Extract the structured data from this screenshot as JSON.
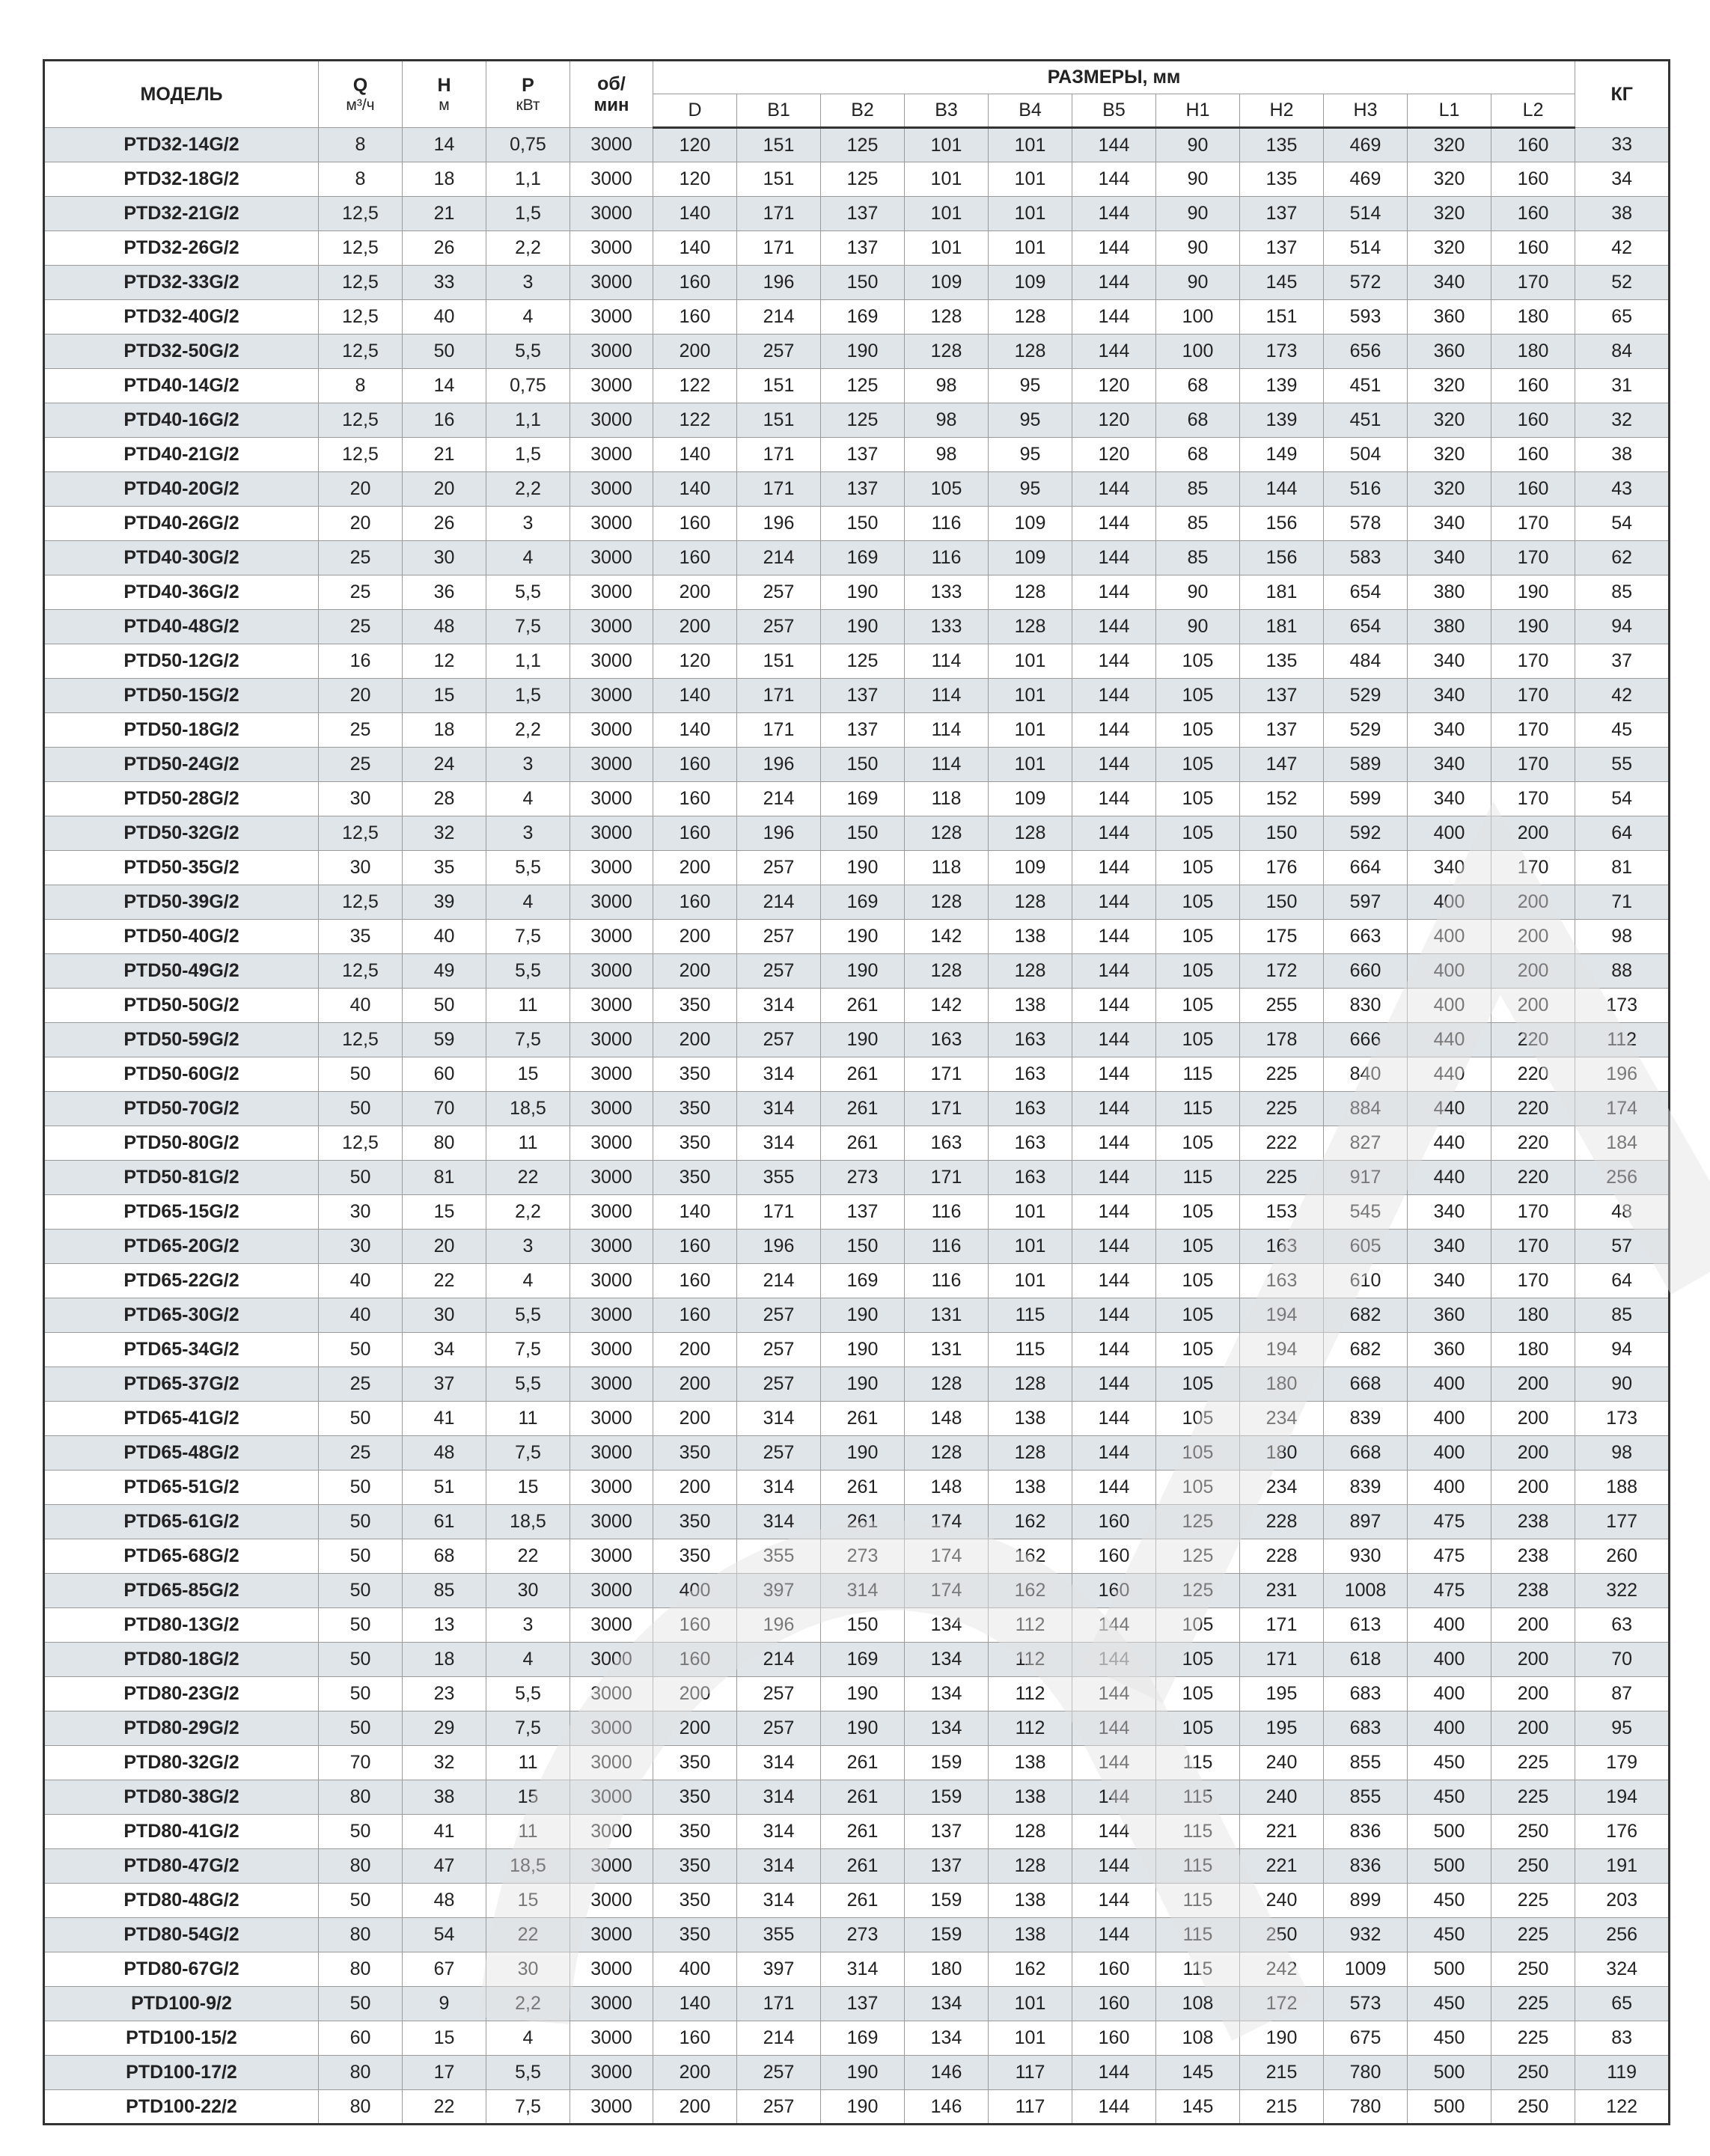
{
  "header": {
    "model": "МОДЕЛЬ",
    "q": {
      "label": "Q",
      "unit": "м³/ч"
    },
    "h": {
      "label": "H",
      "unit": "м"
    },
    "p": {
      "label": "P",
      "unit": "кВт"
    },
    "rpm": {
      "label": "об/",
      "unit": "мин"
    },
    "dimensions": "РАЗМЕРЫ, мм",
    "dim_columns": [
      "D",
      "B1",
      "B2",
      "B3",
      "B4",
      "B5",
      "H1",
      "H2",
      "H3",
      "L1",
      "L2"
    ],
    "weight": "КГ"
  },
  "colors": {
    "stripe": "#dde3e8",
    "border": "#333333",
    "grid": "#9a9a9a"
  },
  "rows": [
    [
      "PTD32-14G/2",
      "8",
      "14",
      "0,75",
      "3000",
      "120",
      "151",
      "125",
      "101",
      "101",
      "144",
      "90",
      "135",
      "469",
      "320",
      "160",
      "33"
    ],
    [
      "PTD32-18G/2",
      "8",
      "18",
      "1,1",
      "3000",
      "120",
      "151",
      "125",
      "101",
      "101",
      "144",
      "90",
      "135",
      "469",
      "320",
      "160",
      "34"
    ],
    [
      "PTD32-21G/2",
      "12,5",
      "21",
      "1,5",
      "3000",
      "140",
      "171",
      "137",
      "101",
      "101",
      "144",
      "90",
      "137",
      "514",
      "320",
      "160",
      "38"
    ],
    [
      "PTD32-26G/2",
      "12,5",
      "26",
      "2,2",
      "3000",
      "140",
      "171",
      "137",
      "101",
      "101",
      "144",
      "90",
      "137",
      "514",
      "320",
      "160",
      "42"
    ],
    [
      "PTD32-33G/2",
      "12,5",
      "33",
      "3",
      "3000",
      "160",
      "196",
      "150",
      "109",
      "109",
      "144",
      "90",
      "145",
      "572",
      "340",
      "170",
      "52"
    ],
    [
      "PTD32-40G/2",
      "12,5",
      "40",
      "4",
      "3000",
      "160",
      "214",
      "169",
      "128",
      "128",
      "144",
      "100",
      "151",
      "593",
      "360",
      "180",
      "65"
    ],
    [
      "PTD32-50G/2",
      "12,5",
      "50",
      "5,5",
      "3000",
      "200",
      "257",
      "190",
      "128",
      "128",
      "144",
      "100",
      "173",
      "656",
      "360",
      "180",
      "84"
    ],
    [
      "PTD40-14G/2",
      "8",
      "14",
      "0,75",
      "3000",
      "122",
      "151",
      "125",
      "98",
      "95",
      "120",
      "68",
      "139",
      "451",
      "320",
      "160",
      "31"
    ],
    [
      "PTD40-16G/2",
      "12,5",
      "16",
      "1,1",
      "3000",
      "122",
      "151",
      "125",
      "98",
      "95",
      "120",
      "68",
      "139",
      "451",
      "320",
      "160",
      "32"
    ],
    [
      "PTD40-21G/2",
      "12,5",
      "21",
      "1,5",
      "3000",
      "140",
      "171",
      "137",
      "98",
      "95",
      "120",
      "68",
      "149",
      "504",
      "320",
      "160",
      "38"
    ],
    [
      "PTD40-20G/2",
      "20",
      "20",
      "2,2",
      "3000",
      "140",
      "171",
      "137",
      "105",
      "95",
      "144",
      "85",
      "144",
      "516",
      "320",
      "160",
      "43"
    ],
    [
      "PTD40-26G/2",
      "20",
      "26",
      "3",
      "3000",
      "160",
      "196",
      "150",
      "116",
      "109",
      "144",
      "85",
      "156",
      "578",
      "340",
      "170",
      "54"
    ],
    [
      "PTD40-30G/2",
      "25",
      "30",
      "4",
      "3000",
      "160",
      "214",
      "169",
      "116",
      "109",
      "144",
      "85",
      "156",
      "583",
      "340",
      "170",
      "62"
    ],
    [
      "PTD40-36G/2",
      "25",
      "36",
      "5,5",
      "3000",
      "200",
      "257",
      "190",
      "133",
      "128",
      "144",
      "90",
      "181",
      "654",
      "380",
      "190",
      "85"
    ],
    [
      "PTD40-48G/2",
      "25",
      "48",
      "7,5",
      "3000",
      "200",
      "257",
      "190",
      "133",
      "128",
      "144",
      "90",
      "181",
      "654",
      "380",
      "190",
      "94"
    ],
    [
      "PTD50-12G/2",
      "16",
      "12",
      "1,1",
      "3000",
      "120",
      "151",
      "125",
      "114",
      "101",
      "144",
      "105",
      "135",
      "484",
      "340",
      "170",
      "37"
    ],
    [
      "PTD50-15G/2",
      "20",
      "15",
      "1,5",
      "3000",
      "140",
      "171",
      "137",
      "114",
      "101",
      "144",
      "105",
      "137",
      "529",
      "340",
      "170",
      "42"
    ],
    [
      "PTD50-18G/2",
      "25",
      "18",
      "2,2",
      "3000",
      "140",
      "171",
      "137",
      "114",
      "101",
      "144",
      "105",
      "137",
      "529",
      "340",
      "170",
      "45"
    ],
    [
      "PTD50-24G/2",
      "25",
      "24",
      "3",
      "3000",
      "160",
      "196",
      "150",
      "114",
      "101",
      "144",
      "105",
      "147",
      "589",
      "340",
      "170",
      "55"
    ],
    [
      "PTD50-28G/2",
      "30",
      "28",
      "4",
      "3000",
      "160",
      "214",
      "169",
      "118",
      "109",
      "144",
      "105",
      "152",
      "599",
      "340",
      "170",
      "54"
    ],
    [
      "PTD50-32G/2",
      "12,5",
      "32",
      "3",
      "3000",
      "160",
      "196",
      "150",
      "128",
      "128",
      "144",
      "105",
      "150",
      "592",
      "400",
      "200",
      "64"
    ],
    [
      "PTD50-35G/2",
      "30",
      "35",
      "5,5",
      "3000",
      "200",
      "257",
      "190",
      "118",
      "109",
      "144",
      "105",
      "176",
      "664",
      "340",
      "170",
      "81"
    ],
    [
      "PTD50-39G/2",
      "12,5",
      "39",
      "4",
      "3000",
      "160",
      "214",
      "169",
      "128",
      "128",
      "144",
      "105",
      "150",
      "597",
      "400",
      "200",
      "71"
    ],
    [
      "PTD50-40G/2",
      "35",
      "40",
      "7,5",
      "3000",
      "200",
      "257",
      "190",
      "142",
      "138",
      "144",
      "105",
      "175",
      "663",
      "400",
      "200",
      "98"
    ],
    [
      "PTD50-49G/2",
      "12,5",
      "49",
      "5,5",
      "3000",
      "200",
      "257",
      "190",
      "128",
      "128",
      "144",
      "105",
      "172",
      "660",
      "400",
      "200",
      "88"
    ],
    [
      "PTD50-50G/2",
      "40",
      "50",
      "11",
      "3000",
      "350",
      "314",
      "261",
      "142",
      "138",
      "144",
      "105",
      "255",
      "830",
      "400",
      "200",
      "173"
    ],
    [
      "PTD50-59G/2",
      "12,5",
      "59",
      "7,5",
      "3000",
      "200",
      "257",
      "190",
      "163",
      "163",
      "144",
      "105",
      "178",
      "666",
      "440",
      "220",
      "112"
    ],
    [
      "PTD50-60G/2",
      "50",
      "60",
      "15",
      "3000",
      "350",
      "314",
      "261",
      "171",
      "163",
      "144",
      "115",
      "225",
      "840",
      "440",
      "220",
      "196"
    ],
    [
      "PTD50-70G/2",
      "50",
      "70",
      "18,5",
      "3000",
      "350",
      "314",
      "261",
      "171",
      "163",
      "144",
      "115",
      "225",
      "884",
      "440",
      "220",
      "174"
    ],
    [
      "PTD50-80G/2",
      "12,5",
      "80",
      "11",
      "3000",
      "350",
      "314",
      "261",
      "163",
      "163",
      "144",
      "105",
      "222",
      "827",
      "440",
      "220",
      "184"
    ],
    [
      "PTD50-81G/2",
      "50",
      "81",
      "22",
      "3000",
      "350",
      "355",
      "273",
      "171",
      "163",
      "144",
      "115",
      "225",
      "917",
      "440",
      "220",
      "256"
    ],
    [
      "PTD65-15G/2",
      "30",
      "15",
      "2,2",
      "3000",
      "140",
      "171",
      "137",
      "116",
      "101",
      "144",
      "105",
      "153",
      "545",
      "340",
      "170",
      "48"
    ],
    [
      "PTD65-20G/2",
      "30",
      "20",
      "3",
      "3000",
      "160",
      "196",
      "150",
      "116",
      "101",
      "144",
      "105",
      "163",
      "605",
      "340",
      "170",
      "57"
    ],
    [
      "PTD65-22G/2",
      "40",
      "22",
      "4",
      "3000",
      "160",
      "214",
      "169",
      "116",
      "101",
      "144",
      "105",
      "163",
      "610",
      "340",
      "170",
      "64"
    ],
    [
      "PTD65-30G/2",
      "40",
      "30",
      "5,5",
      "3000",
      "160",
      "257",
      "190",
      "131",
      "115",
      "144",
      "105",
      "194",
      "682",
      "360",
      "180",
      "85"
    ],
    [
      "PTD65-34G/2",
      "50",
      "34",
      "7,5",
      "3000",
      "200",
      "257",
      "190",
      "131",
      "115",
      "144",
      "105",
      "194",
      "682",
      "360",
      "180",
      "94"
    ],
    [
      "PTD65-37G/2",
      "25",
      "37",
      "5,5",
      "3000",
      "200",
      "257",
      "190",
      "128",
      "128",
      "144",
      "105",
      "180",
      "668",
      "400",
      "200",
      "90"
    ],
    [
      "PTD65-41G/2",
      "50",
      "41",
      "11",
      "3000",
      "200",
      "314",
      "261",
      "148",
      "138",
      "144",
      "105",
      "234",
      "839",
      "400",
      "200",
      "173"
    ],
    [
      "PTD65-48G/2",
      "25",
      "48",
      "7,5",
      "3000",
      "350",
      "257",
      "190",
      "128",
      "128",
      "144",
      "105",
      "180",
      "668",
      "400",
      "200",
      "98"
    ],
    [
      "PTD65-51G/2",
      "50",
      "51",
      "15",
      "3000",
      "200",
      "314",
      "261",
      "148",
      "138",
      "144",
      "105",
      "234",
      "839",
      "400",
      "200",
      "188"
    ],
    [
      "PTD65-61G/2",
      "50",
      "61",
      "18,5",
      "3000",
      "350",
      "314",
      "261",
      "174",
      "162",
      "160",
      "125",
      "228",
      "897",
      "475",
      "238",
      "177"
    ],
    [
      "PTD65-68G/2",
      "50",
      "68",
      "22",
      "3000",
      "350",
      "355",
      "273",
      "174",
      "162",
      "160",
      "125",
      "228",
      "930",
      "475",
      "238",
      "260"
    ],
    [
      "PTD65-85G/2",
      "50",
      "85",
      "30",
      "3000",
      "400",
      "397",
      "314",
      "174",
      "162",
      "160",
      "125",
      "231",
      "1008",
      "475",
      "238",
      "322"
    ],
    [
      "PTD80-13G/2",
      "50",
      "13",
      "3",
      "3000",
      "160",
      "196",
      "150",
      "134",
      "112",
      "144",
      "105",
      "171",
      "613",
      "400",
      "200",
      "63"
    ],
    [
      "PTD80-18G/2",
      "50",
      "18",
      "4",
      "3000",
      "160",
      "214",
      "169",
      "134",
      "112",
      "144",
      "105",
      "171",
      "618",
      "400",
      "200",
      "70"
    ],
    [
      "PTD80-23G/2",
      "50",
      "23",
      "5,5",
      "3000",
      "200",
      "257",
      "190",
      "134",
      "112",
      "144",
      "105",
      "195",
      "683",
      "400",
      "200",
      "87"
    ],
    [
      "PTD80-29G/2",
      "50",
      "29",
      "7,5",
      "3000",
      "200",
      "257",
      "190",
      "134",
      "112",
      "144",
      "105",
      "195",
      "683",
      "400",
      "200",
      "95"
    ],
    [
      "PTD80-32G/2",
      "70",
      "32",
      "11",
      "3000",
      "350",
      "314",
      "261",
      "159",
      "138",
      "144",
      "115",
      "240",
      "855",
      "450",
      "225",
      "179"
    ],
    [
      "PTD80-38G/2",
      "80",
      "38",
      "15",
      "3000",
      "350",
      "314",
      "261",
      "159",
      "138",
      "144",
      "115",
      "240",
      "855",
      "450",
      "225",
      "194"
    ],
    [
      "PTD80-41G/2",
      "50",
      "41",
      "11",
      "3000",
      "350",
      "314",
      "261",
      "137",
      "128",
      "144",
      "115",
      "221",
      "836",
      "500",
      "250",
      "176"
    ],
    [
      "PTD80-47G/2",
      "80",
      "47",
      "18,5",
      "3000",
      "350",
      "314",
      "261",
      "137",
      "128",
      "144",
      "115",
      "221",
      "836",
      "500",
      "250",
      "191"
    ],
    [
      "PTD80-48G/2",
      "50",
      "48",
      "15",
      "3000",
      "350",
      "314",
      "261",
      "159",
      "138",
      "144",
      "115",
      "240",
      "899",
      "450",
      "225",
      "203"
    ],
    [
      "PTD80-54G/2",
      "80",
      "54",
      "22",
      "3000",
      "350",
      "355",
      "273",
      "159",
      "138",
      "144",
      "115",
      "250",
      "932",
      "450",
      "225",
      "256"
    ],
    [
      "PTD80-67G/2",
      "80",
      "67",
      "30",
      "3000",
      "400",
      "397",
      "314",
      "180",
      "162",
      "160",
      "115",
      "242",
      "1009",
      "500",
      "250",
      "324"
    ],
    [
      "PTD100-9/2",
      "50",
      "9",
      "2,2",
      "3000",
      "140",
      "171",
      "137",
      "134",
      "101",
      "160",
      "108",
      "172",
      "573",
      "450",
      "225",
      "65"
    ],
    [
      "PTD100-15/2",
      "60",
      "15",
      "4",
      "3000",
      "160",
      "214",
      "169",
      "134",
      "101",
      "160",
      "108",
      "190",
      "675",
      "450",
      "225",
      "83"
    ],
    [
      "PTD100-17/2",
      "80",
      "17",
      "5,5",
      "3000",
      "200",
      "257",
      "190",
      "146",
      "117",
      "144",
      "145",
      "215",
      "780",
      "500",
      "250",
      "119"
    ],
    [
      "PTD100-22/2",
      "80",
      "22",
      "7,5",
      "3000",
      "200",
      "257",
      "190",
      "146",
      "117",
      "144",
      "145",
      "215",
      "780",
      "500",
      "250",
      "122"
    ]
  ]
}
